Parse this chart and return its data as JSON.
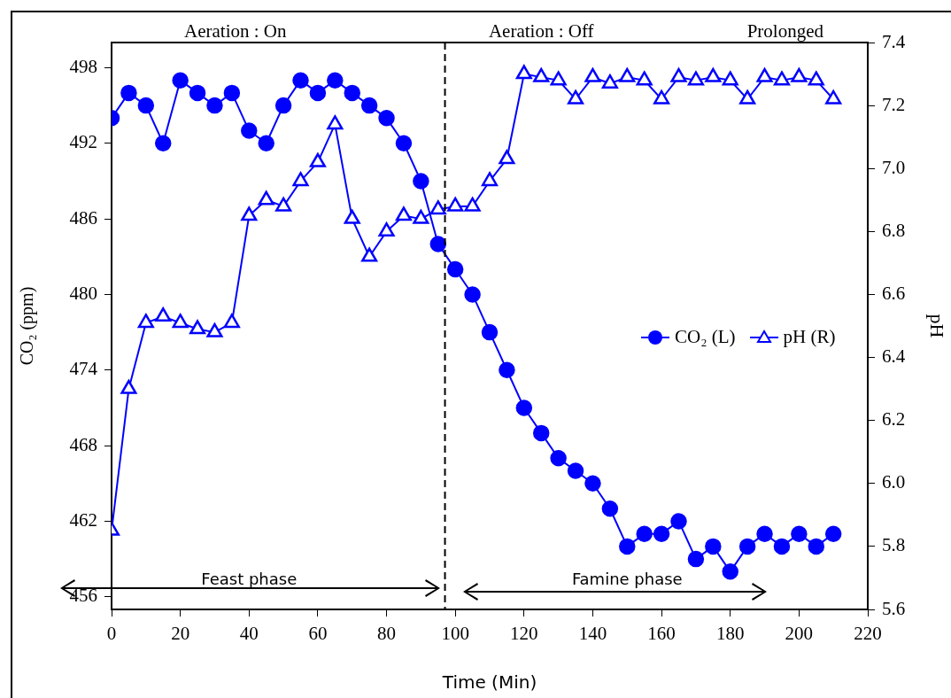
{
  "chart_data": {
    "type": "line",
    "xlabel": "Time (Min)",
    "ylabel": "CO₂ (ppm)",
    "y2label": "pH",
    "x": [
      0,
      5,
      10,
      15,
      20,
      25,
      30,
      35,
      40,
      45,
      50,
      55,
      60,
      65,
      70,
      75,
      80,
      85,
      90,
      95,
      100,
      105,
      110,
      115,
      120,
      125,
      130,
      135,
      140,
      145,
      150,
      155,
      160,
      165,
      170,
      175,
      180,
      185,
      190,
      195,
      200,
      205,
      210
    ],
    "series": [
      {
        "name": "CO₂ (L)",
        "color": "#0000ff",
        "marker": "circle",
        "values": [
          494,
          496,
          495,
          492,
          497,
          496,
          495,
          496,
          493,
          492,
          495,
          497,
          496,
          497,
          496,
          495,
          494,
          492,
          489,
          484,
          482,
          480,
          477,
          474,
          471,
          469,
          467,
          466,
          465,
          463,
          460,
          461,
          461,
          462,
          459,
          460,
          458,
          460,
          461,
          460,
          461,
          460,
          461
        ]
      },
      {
        "name": "pH (R)",
        "color": "#0000ff",
        "marker": "triangle",
        "axis": "y2",
        "values": [
          5.85,
          6.3,
          6.51,
          6.53,
          6.51,
          6.49,
          6.48,
          6.51,
          6.85,
          6.9,
          6.88,
          6.96,
          7.02,
          7.14,
          6.84,
          6.72,
          6.8,
          6.85,
          6.84,
          6.87,
          6.88,
          6.88,
          6.96,
          7.03,
          7.3,
          7.29,
          7.28,
          7.22,
          7.29,
          7.27,
          7.29,
          7.28,
          7.22,
          7.29,
          7.28,
          7.29,
          7.28,
          7.22,
          7.29,
          7.28,
          7.29,
          7.28,
          7.22
        ]
      }
    ],
    "xlim": [
      0,
      220
    ],
    "xticks": [
      0,
      20,
      40,
      60,
      80,
      100,
      120,
      140,
      160,
      180,
      200,
      220
    ],
    "ylim": [
      455,
      500
    ],
    "yticks": [
      456,
      462,
      468,
      474,
      480,
      486,
      492,
      498
    ],
    "y2lim": [
      5.6,
      7.4
    ],
    "y2ticks": [
      5.6,
      5.8,
      {
        "value": 6,
        "label": "6.0"
      },
      6.2,
      6.4,
      6.6,
      6.8,
      {
        "value": 7,
        "label": "7.0"
      },
      7.2,
      7.4
    ],
    "ref_lines": [
      {
        "axis": "x",
        "value": 97,
        "line_style": "dashed",
        "color": "#000000"
      }
    ],
    "annotations": [
      "Aeration : On",
      "Aeration : Off",
      "Prolonged",
      "Feast phase",
      "Famine phase"
    ],
    "legend": "right",
    "grid": false,
    "line_style": "solid"
  }
}
